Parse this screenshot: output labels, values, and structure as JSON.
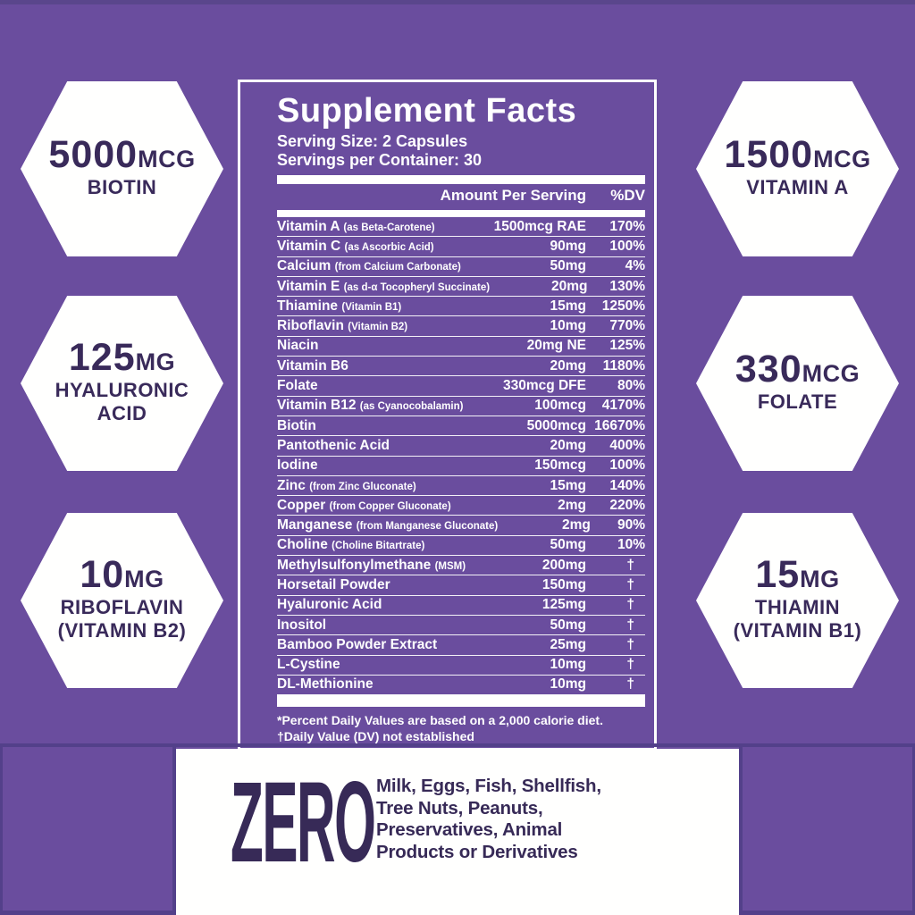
{
  "colors": {
    "background": "#6a4d9e",
    "dark_text": "#392a5a",
    "panel_border": "#ffffff",
    "frame_dark": "#53408a",
    "white": "#fffffe"
  },
  "hexagons": {
    "left": [
      {
        "amount": "5000",
        "unit": "MCG",
        "name_lines": [
          "BIOTIN"
        ]
      },
      {
        "amount": "125",
        "unit": "MG",
        "name_lines": [
          "HYALURONIC",
          "ACID"
        ]
      },
      {
        "amount": "10",
        "unit": "MG",
        "name_lines": [
          "RIBOFLAVIN",
          "(VITAMIN B2)"
        ]
      }
    ],
    "right": [
      {
        "amount": "1500",
        "unit": "MCG",
        "name_lines": [
          "VITAMIN A"
        ]
      },
      {
        "amount": "330",
        "unit": "MCG",
        "name_lines": [
          "FOLATE"
        ]
      },
      {
        "amount": "15",
        "unit": "MG",
        "name_lines": [
          "THIAMIN",
          "(VITAMIN B1)"
        ]
      }
    ]
  },
  "panel": {
    "title": "Supplement Facts",
    "serving_size": "Serving Size: 2 Capsules",
    "servings_per_container": "Servings per Container: 30",
    "header": {
      "amount": "Amount Per Serving",
      "dv": "%DV"
    },
    "rows": [
      {
        "name": "Vitamin A",
        "detail": "(as Beta-Carotene)",
        "amount": "1500mcg RAE",
        "dv": "170%"
      },
      {
        "name": "Vitamin C",
        "detail": "(as Ascorbic Acid)",
        "amount": "90mg",
        "dv": "100%"
      },
      {
        "name": "Calcium",
        "detail": "(from Calcium Carbonate)",
        "amount": "50mg",
        "dv": "4%"
      },
      {
        "name": "Vitamin E",
        "detail": "(as d-α Tocopheryl Succinate)",
        "amount": "20mg",
        "dv": "130%"
      },
      {
        "name": "Thiamine",
        "detail": "(Vitamin B1)",
        "amount": "15mg",
        "dv": "1250%"
      },
      {
        "name": "Riboflavin",
        "detail": "(Vitamin B2)",
        "amount": "10mg",
        "dv": "770%"
      },
      {
        "name": "Niacin",
        "detail": "",
        "amount": "20mg NE",
        "dv": "125%"
      },
      {
        "name": "Vitamin B6",
        "detail": "",
        "amount": "20mg",
        "dv": "1180%"
      },
      {
        "name": "Folate",
        "detail": "",
        "amount": "330mcg DFE",
        "dv": "80%"
      },
      {
        "name": "Vitamin B12",
        "detail": "(as Cyanocobalamin)",
        "amount": "100mcg",
        "dv": "4170%"
      },
      {
        "name": "Biotin",
        "detail": "",
        "amount": "5000mcg",
        "dv": "16670%"
      },
      {
        "name": "Pantothenic Acid",
        "detail": "",
        "amount": "20mg",
        "dv": "400%"
      },
      {
        "name": "Iodine",
        "detail": "",
        "amount": "150mcg",
        "dv": "100%"
      },
      {
        "name": "Zinc",
        "detail": "(from Zinc Gluconate)",
        "amount": "15mg",
        "dv": "140%"
      },
      {
        "name": "Copper",
        "detail": "(from Copper Gluconate)",
        "amount": "2mg",
        "dv": "220%"
      },
      {
        "name": "Manganese",
        "detail": "(from Manganese Gluconate)",
        "amount": "2mg",
        "dv": "90%"
      },
      {
        "name": "Choline",
        "detail": "(Choline Bitartrate)",
        "amount": "50mg",
        "dv": "10%"
      },
      {
        "name": "Methylsulfonylmethane",
        "detail": "(MSM)",
        "amount": "200mg",
        "dv": "†"
      },
      {
        "name": "Horsetail Powder",
        "detail": "",
        "amount": "150mg",
        "dv": "†"
      },
      {
        "name": "Hyaluronic Acid",
        "detail": "",
        "amount": "125mg",
        "dv": "†"
      },
      {
        "name": "Inositol",
        "detail": "",
        "amount": "50mg",
        "dv": "†"
      },
      {
        "name": "Bamboo Powder Extract",
        "detail": "",
        "amount": "25mg",
        "dv": "†"
      },
      {
        "name": "L-Cystine",
        "detail": "",
        "amount": "10mg",
        "dv": "†"
      },
      {
        "name": "DL-Methionine",
        "detail": "",
        "amount": "10mg",
        "dv": "†"
      }
    ],
    "footnotes": [
      "*Percent Daily Values are based on a 2,000 calorie diet.",
      "†Daily Value (DV) not established"
    ]
  },
  "allergen": {
    "zero": "ZERO",
    "lines": [
      "Milk, Eggs, Fish, Shellfish,",
      "Tree Nuts, Peanuts,",
      "Preservatives, Animal",
      "Products or Derivatives"
    ]
  }
}
